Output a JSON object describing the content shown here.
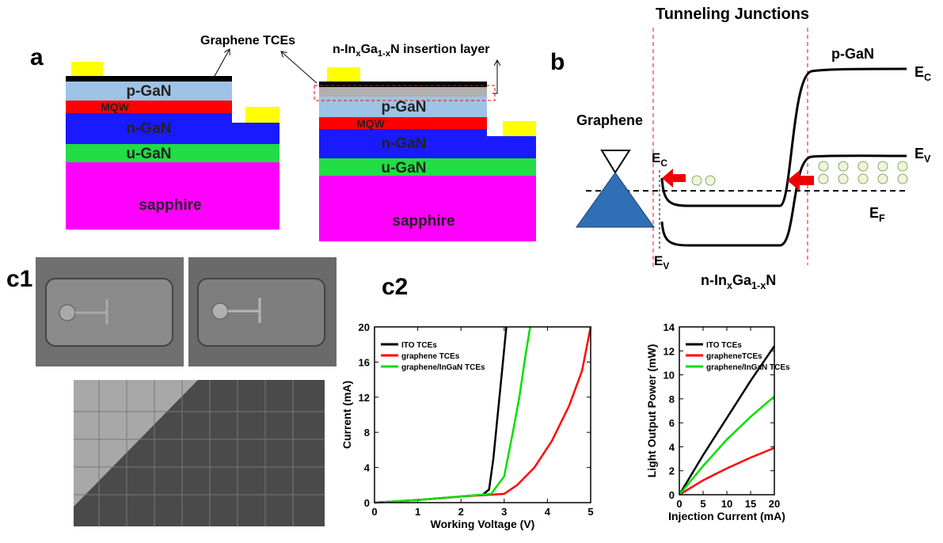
{
  "panel_a": {
    "label": "a",
    "graphene_label": "Graphene TCEs",
    "insertion_label": [
      "n-In",
      "x",
      "Ga",
      "1-x",
      "N insertion layer"
    ],
    "left_layers": {
      "p": "p-GaN",
      "mqw": "MQW",
      "n": "n-GaN",
      "u": "u-GaN",
      "s": "sapphire"
    },
    "right_layers": {
      "p": "p-GaN",
      "mqw": "MQW",
      "n": "n-GaN",
      "u": "u-GaN",
      "s": "sapphire"
    }
  },
  "panel_b": {
    "label": "b",
    "title": "Tunneling Junctions",
    "pgan": "p-GaN",
    "graphene": "Graphene",
    "ec_right": [
      "E",
      "C"
    ],
    "ev_right": [
      "E",
      "V"
    ],
    "ef": [
      "E",
      "F"
    ],
    "ec_left": [
      "E",
      "C"
    ],
    "ev_left": [
      "E",
      "V"
    ],
    "ingan": [
      "n-In",
      "x",
      "Ga",
      "1-x",
      "N"
    ]
  },
  "panel_c": {
    "c1": "c1",
    "c2": "c2"
  },
  "chart_data": [
    {
      "type": "line",
      "xlabel": "Working Voltage (V)",
      "ylabel": "Current (mA)",
      "xlim": [
        0,
        5
      ],
      "ylim": [
        0,
        20
      ],
      "xticks": [
        0,
        1,
        2,
        3,
        4,
        5
      ],
      "yticks": [
        0,
        4,
        8,
        12,
        16,
        20
      ],
      "series": [
        {
          "name": "ITO TCEs",
          "color": "#000000",
          "x": [
            0,
            1,
            2,
            2.5,
            2.65,
            2.75,
            2.85,
            2.95,
            3.05
          ],
          "values": [
            0,
            0.3,
            0.7,
            0.9,
            1.5,
            5,
            10,
            15,
            20
          ]
        },
        {
          "name": "graphene TCEs",
          "color": "#ff0000",
          "x": [
            0,
            1,
            2,
            3,
            3.3,
            3.7,
            4.1,
            4.5,
            4.8,
            5
          ],
          "values": [
            0,
            0.3,
            0.7,
            1,
            2,
            4,
            7,
            11,
            15,
            20
          ]
        },
        {
          "name": "graphene/InGaN TCEs",
          "color": "#00e000",
          "x": [
            0,
            1,
            2,
            2.7,
            3,
            3.2,
            3.35,
            3.5,
            3.6
          ],
          "values": [
            0,
            0.3,
            0.7,
            1,
            3,
            8,
            12,
            17,
            20
          ]
        }
      ]
    },
    {
      "type": "line",
      "xlabel": "Injection Current (mA)",
      "ylabel": "Light Output Power (mW)",
      "xlim": [
        0,
        20
      ],
      "ylim": [
        0,
        14
      ],
      "xticks": [
        0,
        5,
        10,
        15,
        20
      ],
      "yticks": [
        0,
        2,
        4,
        6,
        8,
        10,
        12,
        14
      ],
      "series": [
        {
          "name": "ITO TCEs",
          "color": "#000000",
          "x": [
            0,
            5,
            10,
            15,
            20
          ],
          "values": [
            0,
            3.3,
            6.4,
            9.5,
            12.4
          ]
        },
        {
          "name": "grapheneTCEs",
          "color": "#ff0000",
          "x": [
            0,
            5,
            10,
            15,
            20
          ],
          "values": [
            0,
            1.2,
            2.2,
            3.1,
            3.9
          ]
        },
        {
          "name": "graphene/InGaN  TCEs",
          "color": "#00e000",
          "x": [
            0,
            5,
            10,
            15,
            20
          ],
          "values": [
            0,
            2.4,
            4.6,
            6.5,
            8.2
          ]
        }
      ]
    }
  ]
}
